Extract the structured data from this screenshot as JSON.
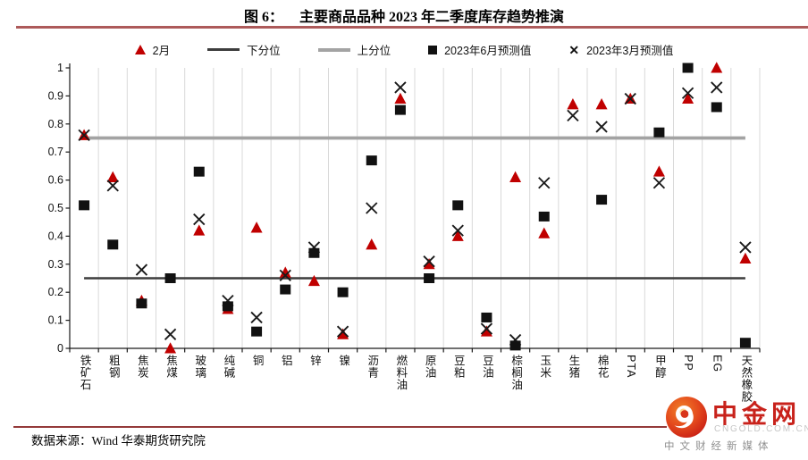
{
  "title": {
    "prefix": "图 6：",
    "text": "主要商品品种 2023 年二季度库存趋势推演"
  },
  "legend": [
    {
      "marker": "triangle",
      "label": "2月"
    },
    {
      "marker": "line-dark",
      "label": "下分位"
    },
    {
      "marker": "line-gray",
      "label": "上分位"
    },
    {
      "marker": "square",
      "label": "2023年6月预测值"
    },
    {
      "marker": "x",
      "label": "2023年3月预测值"
    }
  ],
  "chart_data": {
    "type": "scatter",
    "title": "主要商品品种 2023 年二季度库存趋势推演",
    "categories": [
      "铁矿石",
      "粗钢",
      "焦炭",
      "焦煤",
      "玻璃",
      "纯碱",
      "铜",
      "铝",
      "锌",
      "镍",
      "沥青",
      "燃料油",
      "原油",
      "豆粕",
      "豆油",
      "棕榈油",
      "玉米",
      "生猪",
      "棉花",
      "PTA",
      "甲醇",
      "PP",
      "EG",
      "天然橡胶"
    ],
    "series": [
      {
        "key": "feb",
        "name": "2月",
        "marker": "triangle",
        "color": "#c00000",
        "values": [
          0.76,
          0.61,
          0.17,
          0.0,
          0.42,
          0.14,
          0.43,
          0.27,
          0.24,
          0.05,
          0.37,
          0.89,
          0.3,
          0.4,
          0.06,
          0.61,
          0.41,
          0.87,
          0.87,
          0.89,
          0.63,
          0.89,
          1.0,
          0.32
        ]
      },
      {
        "key": "june",
        "name": "2023年6月预测值",
        "marker": "square",
        "color": "#111111",
        "values": [
          0.51,
          0.37,
          0.16,
          0.25,
          0.63,
          0.15,
          0.06,
          0.21,
          0.34,
          0.2,
          0.67,
          0.85,
          0.25,
          0.51,
          0.11,
          0.01,
          0.47,
          null,
          0.53,
          null,
          0.77,
          1.0,
          0.86,
          0.02
        ]
      },
      {
        "key": "march",
        "name": "2023年3月预测值",
        "marker": "x",
        "color": "#1a1a1a",
        "values": [
          0.76,
          0.58,
          0.28,
          0.05,
          0.46,
          0.17,
          0.11,
          0.26,
          0.36,
          0.06,
          0.5,
          0.93,
          0.31,
          0.42,
          0.07,
          0.03,
          0.59,
          0.83,
          0.79,
          0.89,
          0.59,
          0.91,
          0.93,
          0.36
        ]
      }
    ],
    "reference_lines": [
      {
        "key": "lower",
        "label": "下分位",
        "value": 0.25,
        "color": "#3d3d3d",
        "width": 2.6
      },
      {
        "key": "upper",
        "label": "上分位",
        "value": 0.75,
        "color": "#a3a3a3",
        "width": 3.8
      }
    ],
    "ylim": [
      0,
      1
    ],
    "ytick_step": 0.1,
    "yticks": [
      "0",
      "0.1",
      "0.2",
      "0.3",
      "0.4",
      "0.5",
      "0.6",
      "0.7",
      "0.8",
      "0.9",
      "1"
    ],
    "grid": "vertical",
    "legend_position": "top"
  },
  "source_note": "数据来源：Wind 华泰期货研究院",
  "logo": {
    "name": "中金网",
    "domain": "CNGOLD.COM.CN",
    "tagline": "中文财经新媒体"
  },
  "colors": {
    "rule_top": "#ad5a5a",
    "rule_bottom": "#943a3a",
    "marker_red": "#c00000",
    "marker_black": "#111111",
    "upper_quantile": "#a3a3a3",
    "lower_quantile": "#3d3d3d",
    "gridline": "#d9d9d9",
    "axis": "#1a1a1a",
    "logo_red": "#c8221b",
    "logo_domain_gray": "#c6c6c6",
    "logo_tagline_gray": "#8f8f8f"
  }
}
